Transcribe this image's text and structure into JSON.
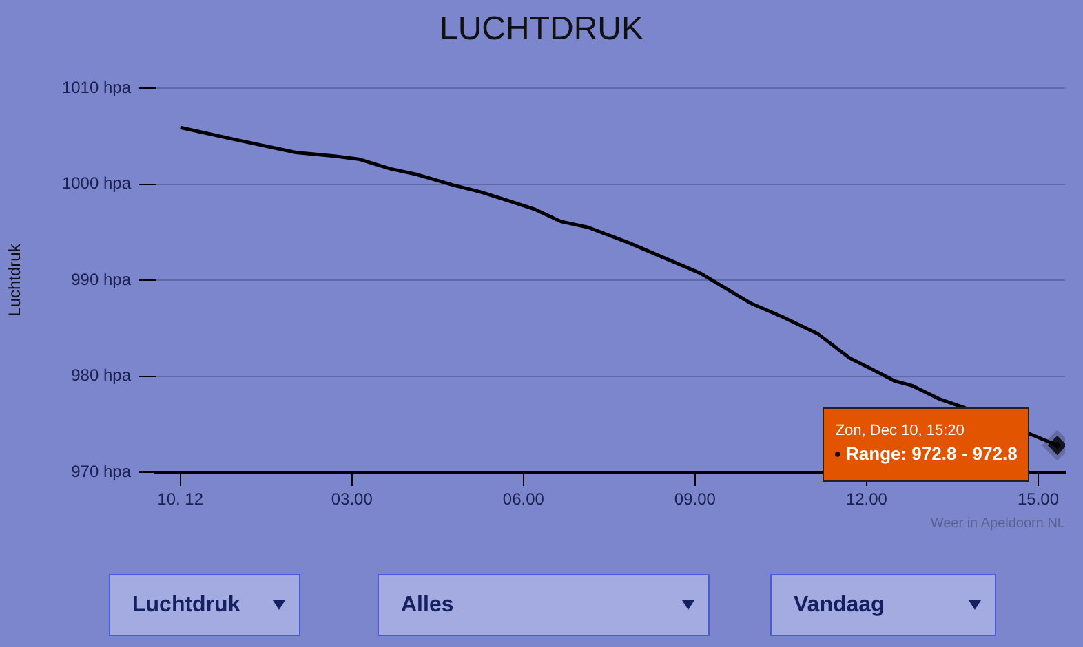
{
  "chart_data": {
    "type": "line",
    "title": "LUCHTDRUK",
    "ylabel": "Luchtdruk",
    "xlim": [
      -0.43,
      15.47
    ],
    "xticks": [
      {
        "value": 0,
        "label": "10. 12"
      },
      {
        "value": 3,
        "label": "03.00"
      },
      {
        "value": 6,
        "label": "06.00"
      },
      {
        "value": 9,
        "label": "09.00"
      },
      {
        "value": 12,
        "label": "12.00"
      },
      {
        "value": 15,
        "label": "15.00"
      }
    ],
    "ylim": [
      970,
      1010
    ],
    "yticks": [
      {
        "value": 970,
        "label": "970 hpa"
      },
      {
        "value": 980,
        "label": "980 hpa"
      },
      {
        "value": 990,
        "label": "990 hpa"
      },
      {
        "value": 1000,
        "label": "1000 hpa"
      },
      {
        "value": 1010,
        "label": "1010 hpa"
      }
    ],
    "grid": "y",
    "legend": false,
    "marker": "none",
    "line_style": "solid",
    "series": [
      {
        "color": "#000000",
        "x": [
          0,
          0.99,
          2.02,
          2.72,
          3.12,
          3.67,
          4.14,
          4.77,
          5.24,
          5.72,
          6.19,
          6.66,
          7.13,
          7.84,
          8.39,
          9.1,
          9.97,
          10.52,
          11.15,
          11.7,
          12.1,
          12.49,
          12.8,
          13.28,
          13.67,
          14.93,
          15.333
        ],
        "values": [
          1005.9,
          1004.6,
          1003.3,
          1002.9,
          1002.6,
          1001.6,
          1001.0,
          999.9,
          999.2,
          998.3,
          997.4,
          996.1,
          995.5,
          993.9,
          992.5,
          990.7,
          987.6,
          986.2,
          984.4,
          981.9,
          980.7,
          979.5,
          979.0,
          977.6,
          976.8,
          973.8,
          972.8
        ]
      },
      {
        "type": "scatter",
        "marker": "diamond",
        "color": "#000000",
        "x": [
          15.333
        ],
        "values": [
          972.8
        ]
      }
    ],
    "annotations": [
      "Weer in Apeldoorn NL",
      "Zon, Dec 10, 15:20",
      "Range: 972.8 - 972.8",
      "Luchtdruk",
      "Alles",
      "Vandaag"
    ]
  }
}
